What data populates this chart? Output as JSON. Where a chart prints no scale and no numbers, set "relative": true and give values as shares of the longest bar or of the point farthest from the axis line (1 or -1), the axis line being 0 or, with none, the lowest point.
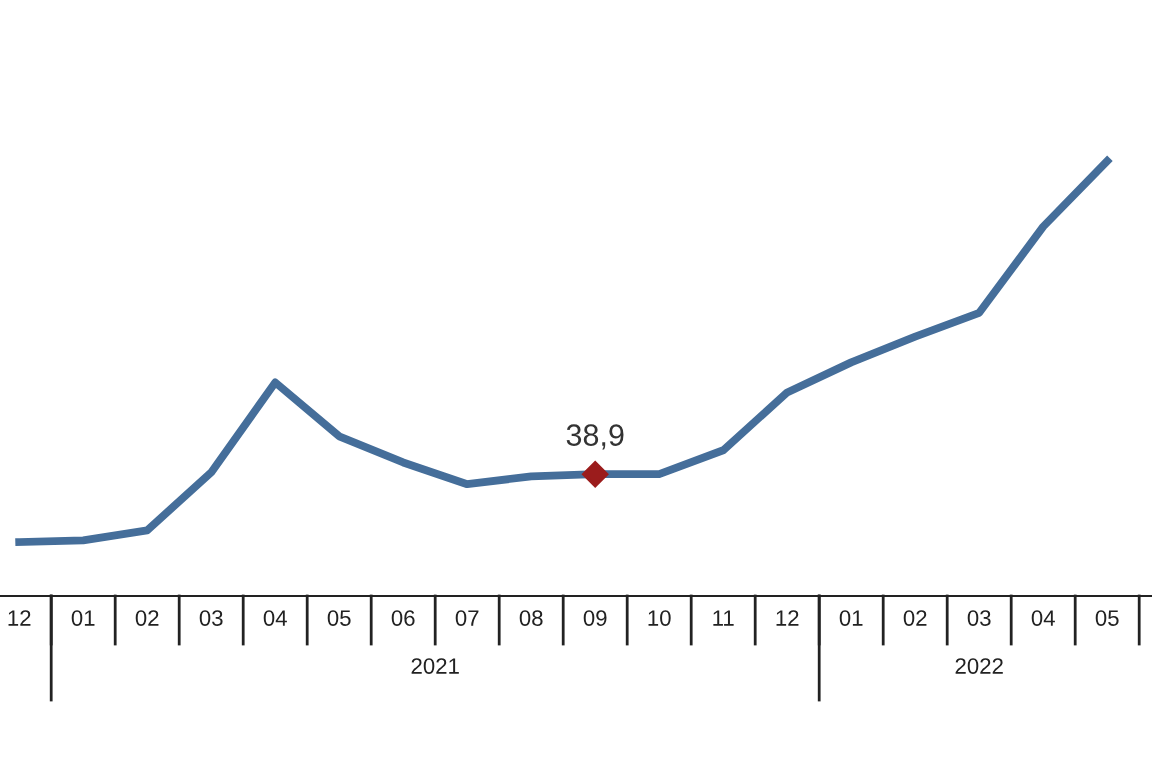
{
  "chart_data": {
    "type": "line",
    "relative": true,
    "categories": [
      "12",
      "01",
      "02",
      "03",
      "04",
      "05",
      "06",
      "07",
      "08",
      "09",
      "10",
      "11",
      "12",
      "01",
      "02",
      "03",
      "04",
      "05"
    ],
    "series": [
      {
        "color": "#456e9a",
        "values": [
          0.124,
          0.128,
          0.151,
          0.284,
          0.491,
          0.367,
          0.307,
          0.257,
          0.275,
          0.28,
          0.28,
          0.335,
          0.468,
          0.537,
          0.596,
          0.651,
          0.849,
          1.0
        ]
      }
    ],
    "annotations": [
      {
        "text": "38,9",
        "x": "09",
        "y": 0.28
      },
      "2021",
      "2022"
    ],
    "legend": false,
    "marker": "none",
    "line_style": "solid"
  }
}
